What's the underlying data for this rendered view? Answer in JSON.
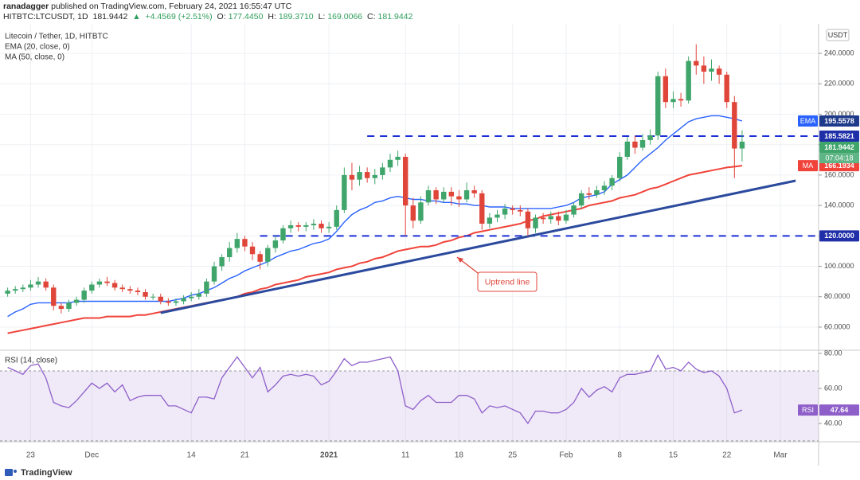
{
  "chart_data": {
    "type": "candlestick",
    "header": {
      "author": "ranadagger",
      "published": "published on TradingView.com, February 24, 2021 16:55:47 UTC",
      "symbol": "HITBTC:LTCUSDT, 1D",
      "price": "181.9442",
      "arrow": "▲",
      "change": "+4.4569 (+2.51%)",
      "ohlc": [
        {
          "k": "O:",
          "v": "177.4450"
        },
        {
          "k": "H:",
          "v": "189.3710"
        },
        {
          "k": "L:",
          "v": "169.0066"
        },
        {
          "k": "C:",
          "v": "181.9442"
        }
      ]
    },
    "title": "Litecoin / Tether, 1D, HITBTC",
    "indicator_labels": [
      "EMA (20, close, 0)",
      "MA (50, close, 0)"
    ],
    "currency": "USDT",
    "countdown": "07:04:18",
    "brand": "TradingView",
    "annotation": "Uptrend line",
    "up_color": "#3fa56b",
    "down_color": "#e0453a",
    "grid": true,
    "xlim": [
      "2020-11-19",
      "2021-03-06"
    ],
    "xticks": [
      {
        "value": "2020-11-23",
        "label": "23"
      },
      {
        "value": "2020-12-01",
        "label": "Dec"
      },
      {
        "value": "2020-12-14",
        "label": "14"
      },
      {
        "value": "2020-12-21",
        "label": "21"
      },
      {
        "value": "2021-01-01",
        "label": "2021",
        "bold": true
      },
      {
        "value": "2021-01-11",
        "label": "11"
      },
      {
        "value": "2021-01-18",
        "label": "18"
      },
      {
        "value": "2021-01-25",
        "label": "25"
      },
      {
        "value": "2021-02-01",
        "label": "Feb"
      },
      {
        "value": "2021-02-08",
        "label": "8"
      },
      {
        "value": "2021-02-15",
        "label": "15"
      },
      {
        "value": "2021-02-22",
        "label": "22"
      },
      {
        "value": "2021-03-01",
        "label": "Mar"
      }
    ],
    "ylim": [
      44.8,
      259.4
    ],
    "yticks": [
      {
        "value": 60,
        "label": "60.0000"
      },
      {
        "value": 80,
        "label": "80.0000"
      },
      {
        "value": 100,
        "label": "100.0000"
      },
      {
        "value": 120,
        "label": "120.0000"
      },
      {
        "value": 140,
        "label": "140.0000"
      },
      {
        "value": 160,
        "label": "160.0000"
      },
      {
        "value": 180,
        "label": "180.0000"
      },
      {
        "value": 200,
        "label": "200.0000"
      },
      {
        "value": 220,
        "label": "220.0000"
      },
      {
        "value": 240,
        "label": "240.0000"
      }
    ],
    "x": [
      "2020-11-20",
      "2020-11-21",
      "2020-11-22",
      "2020-11-23",
      "2020-11-24",
      "2020-11-25",
      "2020-11-26",
      "2020-11-27",
      "2020-11-28",
      "2020-11-29",
      "2020-11-30",
      "2020-12-01",
      "2020-12-02",
      "2020-12-03",
      "2020-12-04",
      "2020-12-05",
      "2020-12-06",
      "2020-12-07",
      "2020-12-08",
      "2020-12-09",
      "2020-12-10",
      "2020-12-11",
      "2020-12-12",
      "2020-12-13",
      "2020-12-14",
      "2020-12-15",
      "2020-12-16",
      "2020-12-17",
      "2020-12-18",
      "2020-12-19",
      "2020-12-20",
      "2020-12-21",
      "2020-12-22",
      "2020-12-23",
      "2020-12-24",
      "2020-12-25",
      "2020-12-26",
      "2020-12-27",
      "2020-12-28",
      "2020-12-29",
      "2020-12-30",
      "2020-12-31",
      "2021-01-01",
      "2021-01-02",
      "2021-01-03",
      "2021-01-04",
      "2021-01-05",
      "2021-01-06",
      "2021-01-07",
      "2021-01-08",
      "2021-01-09",
      "2021-01-10",
      "2021-01-11",
      "2021-01-12",
      "2021-01-13",
      "2021-01-14",
      "2021-01-15",
      "2021-01-16",
      "2021-01-17",
      "2021-01-18",
      "2021-01-19",
      "2021-01-20",
      "2021-01-21",
      "2021-01-22",
      "2021-01-23",
      "2021-01-24",
      "2021-01-25",
      "2021-01-26",
      "2021-01-27",
      "2021-01-28",
      "2021-01-29",
      "2021-01-30",
      "2021-01-31",
      "2021-02-01",
      "2021-02-02",
      "2021-02-03",
      "2021-02-04",
      "2021-02-05",
      "2021-02-06",
      "2021-02-07",
      "2021-02-08",
      "2021-02-09",
      "2021-02-10",
      "2021-02-11",
      "2021-02-12",
      "2021-02-13",
      "2021-02-14",
      "2021-02-15",
      "2021-02-16",
      "2021-02-17",
      "2021-02-18",
      "2021-02-19",
      "2021-02-20",
      "2021-02-21",
      "2021-02-22",
      "2021-02-23",
      "2021-02-24"
    ],
    "open": [
      82,
      84,
      85,
      86,
      88,
      90,
      86,
      74,
      72,
      76,
      78,
      84,
      88,
      90,
      89,
      86,
      85,
      84,
      83,
      80,
      80,
      77,
      76,
      77,
      79,
      80,
      82,
      90,
      100,
      106,
      112,
      118,
      113,
      108,
      103,
      112,
      117,
      125,
      127,
      126,
      127,
      128,
      125,
      126,
      137,
      160,
      157,
      162,
      158,
      160,
      165,
      170,
      172,
      140,
      130,
      142,
      150,
      144,
      149,
      146,
      144,
      150,
      148,
      128,
      132,
      134,
      138,
      137,
      136,
      125,
      132,
      131,
      133,
      130,
      134,
      140,
      148,
      147,
      150,
      153,
      158,
      172,
      182,
      178,
      183,
      186,
      225,
      208,
      210,
      209,
      235,
      232,
      228,
      230,
      226,
      208,
      177.445
    ],
    "high": [
      86,
      87,
      88,
      91,
      93,
      92,
      88,
      76,
      78,
      80,
      86,
      90,
      92,
      93,
      91,
      88,
      87,
      86,
      85,
      82,
      82,
      79,
      79,
      81,
      83,
      85,
      92,
      103,
      108,
      116,
      122,
      120,
      116,
      110,
      114,
      120,
      127,
      130,
      129,
      129,
      131,
      130,
      129,
      140,
      165,
      168,
      166,
      165,
      164,
      168,
      174,
      176,
      174,
      145,
      146,
      153,
      152,
      152,
      152,
      150,
      155,
      153,
      150,
      135,
      137,
      141,
      140,
      140,
      138,
      134,
      135,
      136,
      136,
      137,
      142,
      150,
      152,
      153,
      156,
      160,
      175,
      185,
      186,
      187,
      190,
      228,
      230,
      215,
      214,
      238,
      246,
      238,
      236,
      232,
      228,
      212,
      189.371
    ],
    "low": [
      80,
      82,
      83,
      84,
      86,
      84,
      71,
      69,
      70,
      74,
      76,
      82,
      86,
      87,
      84,
      83,
      82,
      81,
      78,
      78,
      75,
      74,
      74,
      75,
      77,
      78,
      80,
      88,
      97,
      103,
      109,
      110,
      104,
      98,
      100,
      109,
      115,
      122,
      123,
      123,
      124,
      122,
      122,
      124,
      135,
      150,
      153,
      155,
      154,
      157,
      162,
      166,
      120,
      125,
      128,
      140,
      141,
      142,
      140,
      139,
      142,
      145,
      124,
      125,
      129,
      131,
      134,
      133,
      120,
      122,
      128,
      128,
      127,
      128,
      132,
      138,
      144,
      145,
      147,
      150,
      156,
      170,
      174,
      176,
      180,
      183,
      204,
      204,
      205,
      207,
      226,
      220,
      222,
      220,
      204,
      158,
      169.0066
    ],
    "close": [
      84,
      85,
      86,
      88,
      90,
      86,
      74,
      72,
      76,
      78,
      84,
      88,
      90,
      89,
      86,
      85,
      84,
      83,
      80,
      80,
      77,
      76,
      77,
      79,
      80,
      82,
      90,
      100,
      106,
      112,
      118,
      113,
      108,
      103,
      112,
      117,
      125,
      127,
      126,
      127,
      128,
      125,
      126,
      137,
      160,
      157,
      162,
      158,
      160,
      165,
      170,
      172,
      140,
      130,
      142,
      150,
      144,
      149,
      146,
      144,
      150,
      148,
      128,
      132,
      134,
      138,
      137,
      136,
      125,
      132,
      131,
      133,
      130,
      134,
      140,
      148,
      147,
      150,
      153,
      158,
      172,
      182,
      178,
      183,
      186,
      225,
      208,
      210,
      209,
      235,
      232,
      228,
      230,
      226,
      208,
      177.445,
      181.9442
    ],
    "series": [
      {
        "name": "EMA",
        "color": "#2962ff",
        "values": [
          67,
          70,
          72,
          75,
          76,
          76,
          76,
          76,
          76,
          77,
          77,
          77,
          77,
          77,
          77,
          77,
          77,
          77,
          77,
          77,
          77,
          77,
          78,
          79,
          81,
          82,
          84,
          86,
          89,
          92,
          94,
          97,
          99,
          101,
          103,
          106,
          108,
          110,
          111,
          113,
          115,
          116,
          118,
          123,
          129,
          134,
          137,
          139,
          142,
          143,
          145,
          146,
          145,
          144,
          144,
          143,
          143,
          142,
          142,
          141,
          141,
          140,
          140,
          139,
          139,
          139,
          138,
          138,
          138,
          138,
          138,
          138,
          139,
          140,
          142,
          145,
          146,
          147,
          149,
          154,
          157,
          160,
          165,
          170,
          174,
          178,
          183,
          187,
          191,
          195,
          197,
          198,
          199,
          199,
          198,
          197,
          195.5578
        ]
      },
      {
        "name": "MA",
        "color": "#f0433a",
        "values": [
          56,
          57,
          58,
          59,
          60,
          61,
          62,
          63,
          64,
          65,
          66,
          66,
          66,
          67,
          67,
          67,
          67,
          68,
          68,
          69,
          70,
          71,
          72,
          73,
          74,
          75,
          76,
          77,
          78,
          79,
          80,
          82,
          83,
          85,
          86,
          88,
          89,
          90,
          91,
          93,
          94,
          95,
          96,
          98,
          99,
          100,
          102,
          103,
          105,
          106,
          108,
          110,
          111,
          112,
          113,
          113,
          114,
          116,
          117,
          119,
          120,
          122,
          123,
          124,
          125,
          126,
          127,
          128,
          130,
          131,
          133,
          134,
          135,
          136,
          137,
          138,
          140,
          141,
          142,
          143,
          145,
          146,
          147,
          149,
          151,
          152,
          154,
          156,
          158,
          160,
          161,
          162,
          163,
          164,
          165,
          165.5,
          166.1934
        ]
      }
    ],
    "levels": [
      {
        "value": 185.5821,
        "from": "2021-01-06",
        "color": "#1a2fd6"
      },
      {
        "value": 120,
        "label": "120.0000",
        "from": "2020-12-23",
        "color": "#1a2fd6"
      }
    ],
    "trendline": {
      "points": [
        [
          "2020-12-10",
          69.4
        ],
        [
          "2021-03-03",
          156.3
        ]
      ],
      "color": "#2b4a9e"
    },
    "rsi": {
      "label": "RSI (14, close)",
      "name": "RSI",
      "color": "#8e5fc9",
      "ylim": [
        29.5,
        81.8
      ],
      "yticks": [
        {
          "value": 40,
          "label": "40.00"
        },
        {
          "value": 60,
          "label": "60.00"
        },
        {
          "value": 80,
          "label": "80.00"
        }
      ],
      "band": [
        30,
        70
      ],
      "values": [
        72,
        70,
        68,
        73,
        74,
        66,
        52,
        50,
        49,
        53,
        58,
        63,
        60,
        63,
        58,
        62,
        53,
        55,
        56,
        56,
        56,
        50,
        50,
        48,
        46,
        55,
        55,
        54,
        66,
        72,
        78,
        72,
        66,
        72,
        58,
        62,
        67,
        68,
        67,
        68,
        67,
        62,
        64,
        70,
        77,
        73,
        75,
        75,
        76,
        77,
        78,
        70,
        50,
        48,
        53,
        56,
        52,
        52,
        52,
        56,
        56,
        54,
        46,
        50,
        49,
        50,
        48,
        46,
        40,
        47,
        47,
        46,
        46,
        48,
        52,
        60,
        55,
        59,
        61,
        58,
        66,
        68,
        68,
        69,
        70,
        79,
        71,
        72,
        70,
        75,
        71,
        69,
        70,
        67,
        60,
        46,
        47.64
      ]
    }
  }
}
